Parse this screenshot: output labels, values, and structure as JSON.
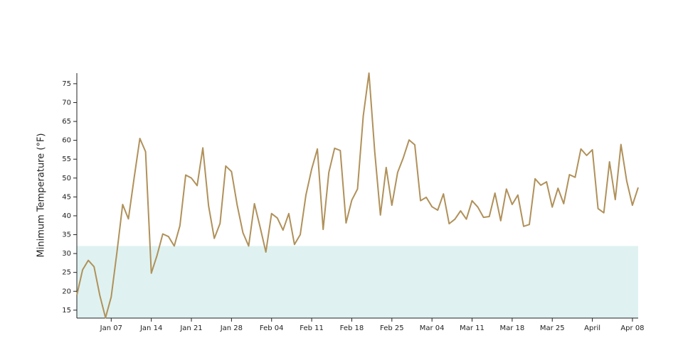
{
  "chart_data": {
    "type": "line",
    "y_label": "Minimum Temperature (°F)",
    "x": [
      "01-01",
      "01-02",
      "01-03",
      "01-04",
      "01-05",
      "01-06",
      "01-07",
      "01-08",
      "01-09",
      "01-10",
      "01-11",
      "01-12",
      "01-13",
      "01-14",
      "01-15",
      "01-16",
      "01-17",
      "01-18",
      "01-19",
      "01-20",
      "01-21",
      "01-22",
      "01-23",
      "01-24",
      "01-25",
      "01-26",
      "01-27",
      "01-28",
      "01-29",
      "01-30",
      "01-31",
      "02-01",
      "02-02",
      "02-03",
      "02-04",
      "02-05",
      "02-06",
      "02-07",
      "02-08",
      "02-09",
      "02-10",
      "02-11",
      "02-12",
      "02-13",
      "02-14",
      "02-15",
      "02-16",
      "02-17",
      "02-18",
      "02-19",
      "02-20",
      "02-21",
      "02-22",
      "02-23",
      "02-24",
      "02-25",
      "02-26",
      "02-27",
      "02-28",
      "03-01",
      "03-02",
      "03-03",
      "03-04",
      "03-05",
      "03-06",
      "03-07",
      "03-08",
      "03-09",
      "03-10",
      "03-11",
      "03-12",
      "03-13",
      "03-14",
      "03-15",
      "03-16",
      "03-17",
      "03-18",
      "03-19",
      "03-20",
      "03-21",
      "03-22",
      "03-23",
      "03-24",
      "03-25",
      "03-26",
      "03-27",
      "03-28",
      "03-29",
      "03-30",
      "03-31",
      "04-01",
      "04-02",
      "04-03",
      "04-04",
      "04-05",
      "04-06",
      "04-07",
      "04-08",
      "04-09"
    ],
    "series": [
      {
        "name": "Minimum Temperature",
        "color": "#b0915a",
        "values": [
          19,
          25.7,
          28.2,
          26.5,
          19,
          13,
          18.5,
          30.4,
          43,
          39.2,
          50,
          60.5,
          57,
          24.8,
          29.5,
          35.2,
          34.5,
          32,
          37.4,
          50.8,
          50,
          48,
          58,
          42.6,
          34,
          38,
          53.2,
          51.7,
          42.8,
          35.5,
          32,
          43.2,
          37,
          30.4,
          40.6,
          39.4,
          36.2,
          40.6,
          32.4,
          35,
          45.5,
          52.4,
          57.7,
          36.4,
          51.5,
          57.9,
          57.3,
          38.1,
          44.1,
          47.1,
          66.5,
          77.8,
          57,
          40.2,
          52.8,
          42.8,
          51.5,
          55.4,
          60.1,
          58.8,
          44,
          44.9,
          42.4,
          41.5,
          45.8,
          37.9,
          39.1,
          41.3,
          39.1,
          44,
          42.3,
          39.6,
          39.8,
          46,
          38.7,
          47.1,
          43,
          45.5,
          37.2,
          37.7,
          49.8,
          48.1,
          49,
          42.3,
          47.3,
          43.2,
          50.9,
          50.2,
          57.7,
          56,
          57.5,
          41.9,
          40.8,
          54.3,
          44.3,
          58.9,
          49.2,
          42.8,
          47.5
        ]
      }
    ],
    "band": {
      "max": 32,
      "color": "#dff2f1"
    },
    "xlim": [
      "01-01",
      "04-09"
    ],
    "xticks": [
      {
        "value": "01-07",
        "label": "Jan 07"
      },
      {
        "value": "01-14",
        "label": "Jan 14"
      },
      {
        "value": "01-21",
        "label": "Jan 21"
      },
      {
        "value": "01-28",
        "label": "Jan 28"
      },
      {
        "value": "02-04",
        "label": "Feb 04"
      },
      {
        "value": "02-11",
        "label": "Feb 11"
      },
      {
        "value": "02-18",
        "label": "Feb 18"
      },
      {
        "value": "02-25",
        "label": "Feb 25"
      },
      {
        "value": "03-04",
        "label": "Mar 04"
      },
      {
        "value": "03-11",
        "label": "Mar 11"
      },
      {
        "value": "03-18",
        "label": "Mar 18"
      },
      {
        "value": "03-25",
        "label": "Mar 25"
      },
      {
        "value": "04-01",
        "label": "April"
      },
      {
        "value": "04-08",
        "label": "Apr 08"
      }
    ],
    "ylim": [
      12.9,
      77.8
    ],
    "yticks": [
      15,
      20,
      25,
      30,
      35,
      40,
      45,
      50,
      55,
      60,
      65,
      70,
      75
    ]
  }
}
